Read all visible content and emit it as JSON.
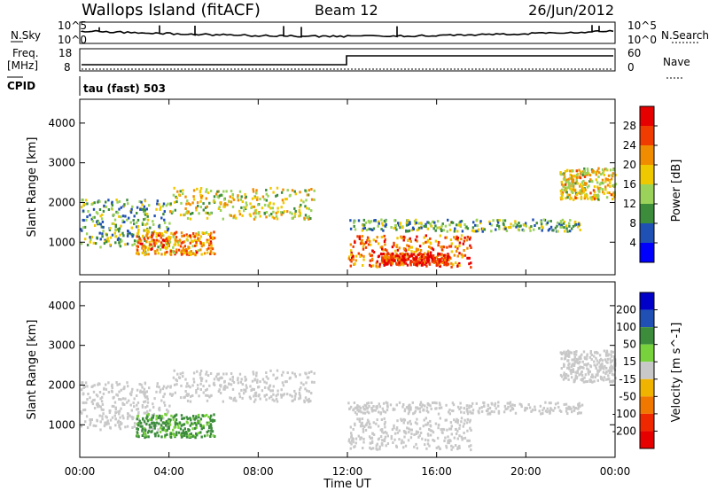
{
  "header": {
    "station": "Wallops Island (fitACF)",
    "beam": "Beam 12",
    "date": "26/Jun/2012"
  },
  "top_panels": {
    "nsky_label": "N.Sky",
    "nsky_ticks": [
      "10^5",
      "10^0"
    ],
    "nsearch_label": "N.Search",
    "nsearch_ticks": [
      "10^5",
      "10^0"
    ],
    "freq_label": "Freq.",
    "freq_unit": "[MHz]",
    "freq_ticks": [
      "18",
      "8"
    ],
    "nave_label": "Nave",
    "nave_ticks": [
      "60",
      "0"
    ],
    "cpid_label": "CPID",
    "cpid_text": "tau (fast) 503"
  },
  "colors": {
    "power_scale": [
      "#0000ff",
      "#1f50b4",
      "#3c8c3c",
      "#9ad25a",
      "#f0c800",
      "#f08c00",
      "#f03c00",
      "#e60000"
    ],
    "velocity_scale": [
      "#0000c8",
      "#2050b4",
      "#3c8c3c",
      "#78d23c",
      "#c8c8c8",
      "#f0b400",
      "#f07800",
      "#f02800",
      "#e60000"
    ],
    "panel_bg": "#ffffff",
    "ground_scatter": "#c0c0c0"
  },
  "chart_data": [
    {
      "type": "heatmap",
      "name": "power",
      "title": "",
      "xlabel": "Time UT",
      "ylabel": "Slant Range [km]",
      "x_ticks": [
        "00:00",
        "04:00",
        "08:00",
        "12:00",
        "16:00",
        "20:00",
        "00:00"
      ],
      "xlim": [
        0,
        24
      ],
      "ylim": [
        180,
        4600
      ],
      "y_ticks": [
        "1000",
        "2000",
        "3000",
        "4000"
      ],
      "y_tick_values": [
        1000,
        2000,
        3000,
        4000
      ],
      "colorbar": {
        "label": "Power [dB]",
        "ticks": [
          "4",
          "8",
          "12",
          "16",
          "20",
          "24",
          "28"
        ],
        "range": [
          0,
          32
        ]
      },
      "echo_regions": [
        {
          "t0": 0.0,
          "t1": 4.0,
          "r0": 900,
          "r1": 2100,
          "level": 12
        },
        {
          "t0": 2.5,
          "t1": 6.0,
          "r0": 700,
          "r1": 1300,
          "level": 22
        },
        {
          "t0": 4.0,
          "t1": 10.5,
          "r0": 1600,
          "r1": 2400,
          "level": 16
        },
        {
          "t0": 12.0,
          "t1": 17.5,
          "r0": 400,
          "r1": 1200,
          "level": 24
        },
        {
          "t0": 13.5,
          "t1": 16.5,
          "r0": 450,
          "r1": 750,
          "level": 28
        },
        {
          "t0": 12.0,
          "t1": 22.5,
          "r0": 1300,
          "r1": 1600,
          "level": 12
        },
        {
          "t0": 21.5,
          "t1": 24.0,
          "r0": 2100,
          "r1": 2900,
          "level": 18
        }
      ]
    },
    {
      "type": "heatmap",
      "name": "velocity",
      "title": "",
      "xlabel": "Time UT",
      "ylabel": "Slant Range [km]",
      "x_ticks": [
        "00:00",
        "04:00",
        "08:00",
        "12:00",
        "16:00",
        "20:00",
        "00:00"
      ],
      "xlim": [
        0,
        24
      ],
      "ylim": [
        180,
        4600
      ],
      "y_ticks": [
        "1000",
        "2000",
        "3000",
        "4000"
      ],
      "y_tick_values": [
        1000,
        2000,
        3000,
        4000
      ],
      "colorbar": {
        "label": "Velocity [m s^-1]",
        "ticks": [
          "200",
          "100",
          "50",
          "15",
          "-15",
          "-50",
          "-100",
          "-200"
        ]
      },
      "echo_regions": [
        {
          "t0": 0.0,
          "t1": 4.0,
          "r0": 900,
          "r1": 2100,
          "velocity": 0
        },
        {
          "t0": 2.5,
          "t1": 6.0,
          "r0": 700,
          "r1": 1300,
          "velocity": 40
        },
        {
          "t0": 4.0,
          "t1": 10.5,
          "r0": 1600,
          "r1": 2400,
          "velocity": 10
        },
        {
          "t0": 12.0,
          "t1": 17.5,
          "r0": 400,
          "r1": 1200,
          "velocity": 0
        },
        {
          "t0": 12.0,
          "t1": 22.5,
          "r0": 1300,
          "r1": 1600,
          "velocity": 0
        },
        {
          "t0": 21.5,
          "t1": 24.0,
          "r0": 2100,
          "r1": 2900,
          "velocity": 0
        }
      ]
    }
  ]
}
